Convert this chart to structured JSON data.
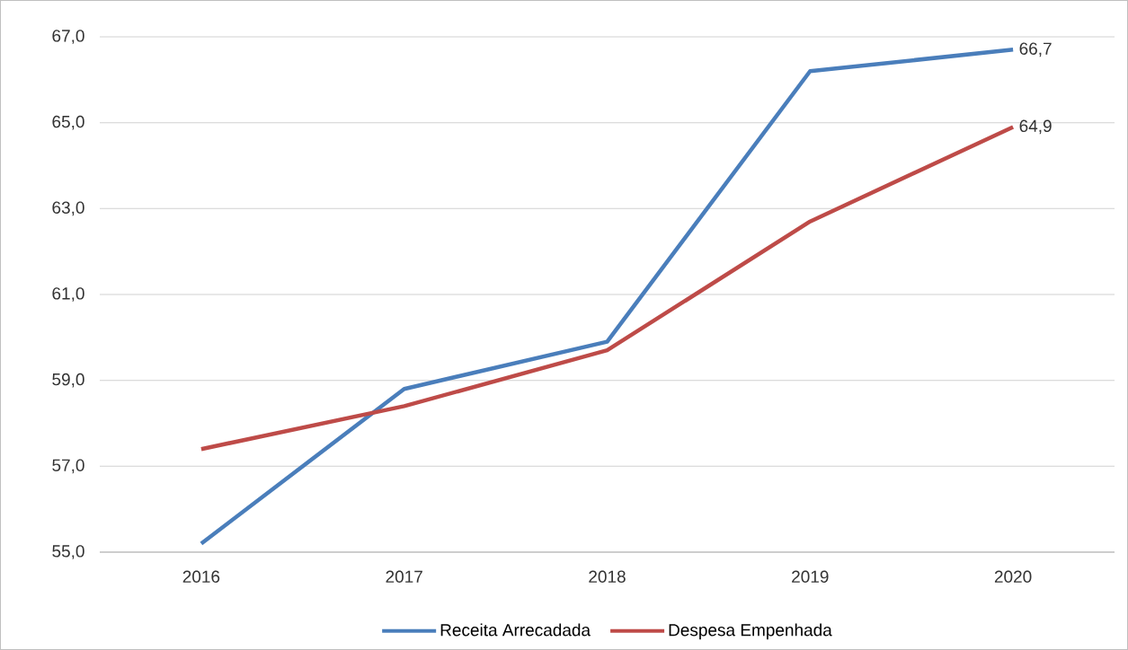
{
  "chart_data": {
    "type": "line",
    "categories": [
      "2016",
      "2017",
      "2018",
      "2019",
      "2020"
    ],
    "series": [
      {
        "name": "Receita Arrecadada",
        "color": "#4a7ebb",
        "values": [
          55.2,
          58.8,
          59.9,
          66.2,
          66.7
        ],
        "value_labels": [
          null,
          null,
          null,
          null,
          "66,7"
        ]
      },
      {
        "name": "Despesa Empenhada",
        "color": "#be4b48",
        "values": [
          57.4,
          58.4,
          59.7,
          62.7,
          64.9
        ],
        "value_labels": [
          null,
          null,
          null,
          null,
          "64,9"
        ]
      }
    ],
    "ylim": [
      55,
      67
    ],
    "yticks": [
      {
        "value": 55,
        "label": "55,0"
      },
      {
        "value": 57,
        "label": "57,0"
      },
      {
        "value": 59,
        "label": "59,0"
      },
      {
        "value": 61,
        "label": "61,0"
      },
      {
        "value": 63,
        "label": "63,0"
      },
      {
        "value": 65,
        "label": "65,0"
      },
      {
        "value": 67,
        "label": "67,0"
      }
    ],
    "grid": "y",
    "legend": "bottom",
    "marker": "none",
    "line_style": "solid"
  }
}
